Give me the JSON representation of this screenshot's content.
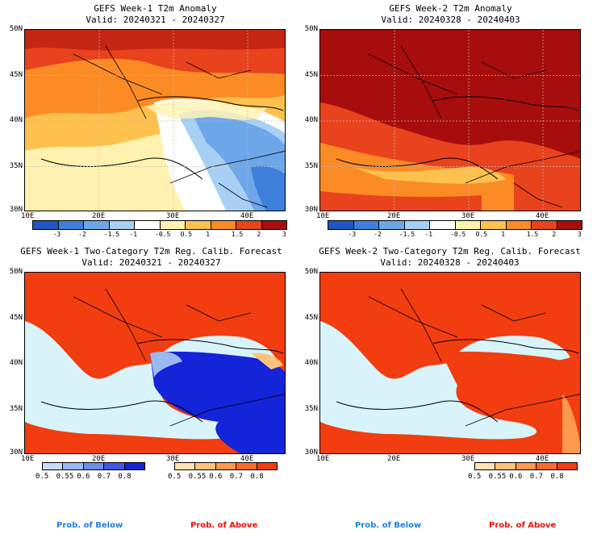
{
  "panels": [
    {
      "title": "GEFS Week-1 T2m Anomaly",
      "valid": "Valid: 20240321 - 20240327"
    },
    {
      "title": "GEFS Week-2 T2m Anomaly",
      "valid": "Valid: 20240328 - 20240403"
    },
    {
      "title": "GEFS Week-1 Two-Category T2m Reg. Calib. Forecast",
      "valid": "Valid: 20240321 - 20240327"
    },
    {
      "title": "GEFS Week-2 Two-Category T2m Reg. Calib. Forecast",
      "valid": "Valid: 20240328 - 20240403"
    }
  ],
  "lat_labels": [
    "50N",
    "45N",
    "40N",
    "35N",
    "30N"
  ],
  "lon_labels": [
    "10E",
    "20E",
    "30E",
    "40E"
  ],
  "anomaly_ticks": [
    "-3",
    "-2",
    "-1.5",
    "-1",
    "-0.5",
    "0.5",
    "1",
    "1.5",
    "2",
    "3"
  ],
  "anomaly_colors": [
    "#1f56c4",
    "#3f7fdc",
    "#6ea6ea",
    "#a8d0f5",
    "#ffffff",
    "#fff2b0",
    "#ffc14d",
    "#fb8b24",
    "#e8431c",
    "#a80d0d"
  ],
  "prob_ticks": [
    "0.5",
    "0.55",
    "0.6",
    "0.7",
    "0.8"
  ],
  "below_colors": [
    "#c7dcf8",
    "#9bb8f0",
    "#6e8eea",
    "#3f57e6",
    "#1424d8"
  ],
  "above_colors": [
    "#ffe3b0",
    "#ffc27a",
    "#ff9a4d",
    "#ff6a2a",
    "#f23d10"
  ],
  "legend": {
    "below": "Prob. of Below",
    "above": "Prob. of Above"
  },
  "colors": {
    "sea": "#d8f4fa",
    "below_text": "#1f7fe0",
    "above_text": "#e8120c"
  }
}
